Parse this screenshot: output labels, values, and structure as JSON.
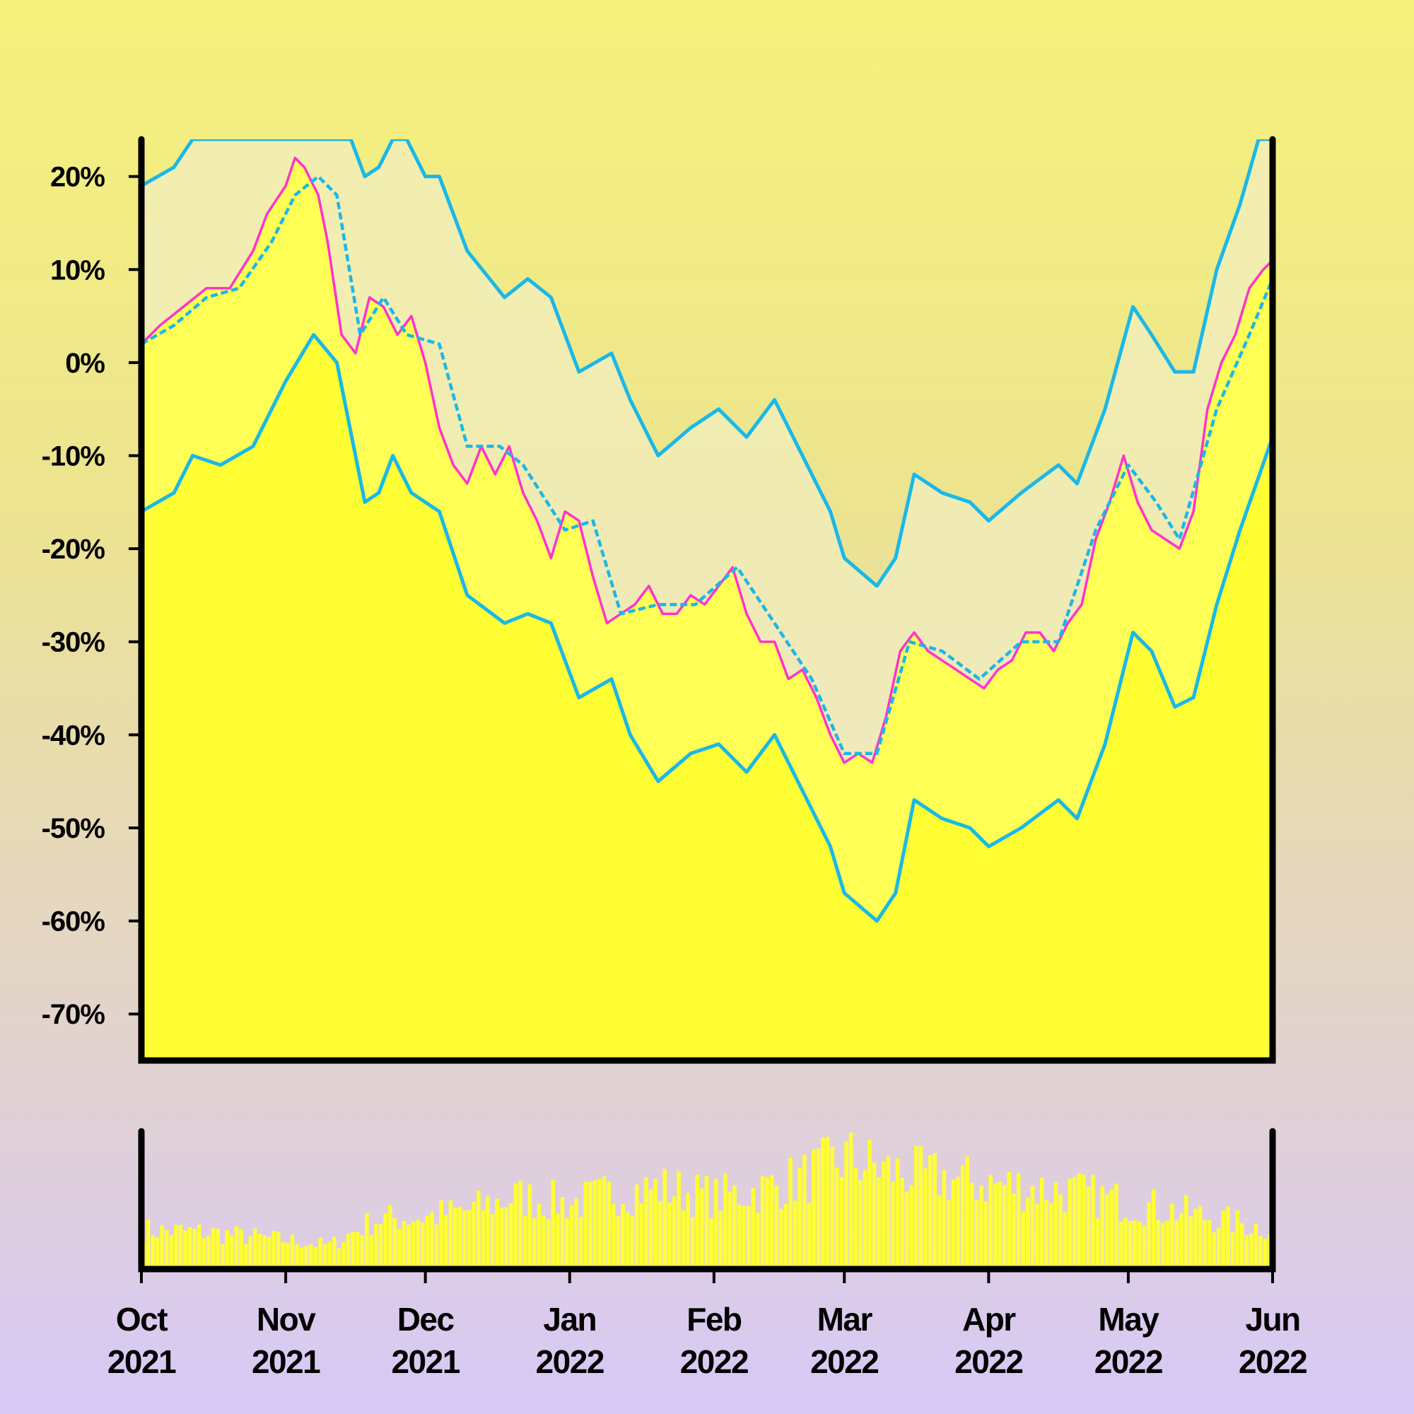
{
  "chart_data": {
    "type": "line",
    "title": "",
    "xlabel": "",
    "ylabel": "",
    "x_range": [
      "2021-10-01",
      "2022-06-01"
    ],
    "ylim": [
      -75,
      24
    ],
    "y_ticks": [
      {
        "value": 20,
        "label": "20%"
      },
      {
        "value": 10,
        "label": "10%"
      },
      {
        "value": 0,
        "label": "0%"
      },
      {
        "value": -10,
        "label": "-10%"
      },
      {
        "value": -20,
        "label": "-20%"
      },
      {
        "value": -30,
        "label": "-30%"
      },
      {
        "value": -40,
        "label": "-40%"
      },
      {
        "value": -50,
        "label": "-50%"
      },
      {
        "value": -60,
        "label": "-60%"
      },
      {
        "value": -70,
        "label": "-70%"
      }
    ],
    "x_ticks": [
      {
        "date": "2021-10-01",
        "month": "Oct",
        "year": "2021"
      },
      {
        "date": "2021-11-01",
        "month": "Nov",
        "year": "2021"
      },
      {
        "date": "2021-12-01",
        "month": "Dec",
        "year": "2021"
      },
      {
        "date": "2022-01-01",
        "month": "Jan",
        "year": "2022"
      },
      {
        "date": "2022-02-01",
        "month": "Feb",
        "year": "2022"
      },
      {
        "date": "2022-03-01",
        "month": "Mar",
        "year": "2022"
      },
      {
        "date": "2022-04-01",
        "month": "Apr",
        "year": "2022"
      },
      {
        "date": "2022-05-01",
        "month": "May",
        "year": "2022"
      },
      {
        "date": "2022-06-01",
        "month": "Jun",
        "year": "2022"
      }
    ],
    "colors": {
      "price_line": "#ff33cc",
      "bands": "#1ab8e8",
      "area_fill": "#ffff33",
      "band_fill": "#f2eec2",
      "volume": "#ffff33",
      "frame": "#000000"
    },
    "series": [
      {
        "role": "price",
        "style": "solid",
        "points": [
          [
            "2021-10-01",
            2
          ],
          [
            "2021-10-05",
            4
          ],
          [
            "2021-10-10",
            6
          ],
          [
            "2021-10-15",
            8
          ],
          [
            "2021-10-20",
            8
          ],
          [
            "2021-10-25",
            12
          ],
          [
            "2021-10-28",
            16
          ],
          [
            "2021-11-01",
            19
          ],
          [
            "2021-11-03",
            22
          ],
          [
            "2021-11-05",
            21
          ],
          [
            "2021-11-08",
            18
          ],
          [
            "2021-11-10",
            13
          ],
          [
            "2021-11-13",
            3
          ],
          [
            "2021-11-16",
            1
          ],
          [
            "2021-11-19",
            7
          ],
          [
            "2021-11-22",
            6
          ],
          [
            "2021-11-25",
            3
          ],
          [
            "2021-11-28",
            5
          ],
          [
            "2021-12-01",
            0
          ],
          [
            "2021-12-04",
            -7
          ],
          [
            "2021-12-07",
            -11
          ],
          [
            "2021-12-10",
            -13
          ],
          [
            "2021-12-13",
            -9
          ],
          [
            "2021-12-16",
            -12
          ],
          [
            "2021-12-19",
            -9
          ],
          [
            "2021-12-22",
            -14
          ],
          [
            "2021-12-25",
            -17
          ],
          [
            "2021-12-28",
            -21
          ],
          [
            "2021-12-31",
            -16
          ],
          [
            "2022-01-03",
            -17
          ],
          [
            "2022-01-06",
            -23
          ],
          [
            "2022-01-09",
            -28
          ],
          [
            "2022-01-12",
            -27
          ],
          [
            "2022-01-15",
            -26
          ],
          [
            "2022-01-18",
            -24
          ],
          [
            "2022-01-21",
            -27
          ],
          [
            "2022-01-24",
            -27
          ],
          [
            "2022-01-27",
            -25
          ],
          [
            "2022-01-30",
            -26
          ],
          [
            "2022-02-02",
            -24
          ],
          [
            "2022-02-05",
            -22
          ],
          [
            "2022-02-08",
            -27
          ],
          [
            "2022-02-11",
            -30
          ],
          [
            "2022-02-14",
            -30
          ],
          [
            "2022-02-17",
            -34
          ],
          [
            "2022-02-20",
            -33
          ],
          [
            "2022-02-23",
            -36
          ],
          [
            "2022-02-26",
            -40
          ],
          [
            "2022-03-01",
            -43
          ],
          [
            "2022-03-04",
            -42
          ],
          [
            "2022-03-07",
            -43
          ],
          [
            "2022-03-10",
            -38
          ],
          [
            "2022-03-13",
            -31
          ],
          [
            "2022-03-16",
            -29
          ],
          [
            "2022-03-19",
            -31
          ],
          [
            "2022-03-22",
            -32
          ],
          [
            "2022-03-25",
            -33
          ],
          [
            "2022-03-28",
            -34
          ],
          [
            "2022-03-31",
            -35
          ],
          [
            "2022-04-03",
            -33
          ],
          [
            "2022-04-06",
            -32
          ],
          [
            "2022-04-09",
            -29
          ],
          [
            "2022-04-12",
            -29
          ],
          [
            "2022-04-15",
            -31
          ],
          [
            "2022-04-18",
            -28
          ],
          [
            "2022-04-21",
            -26
          ],
          [
            "2022-04-24",
            -19
          ],
          [
            "2022-04-27",
            -15
          ],
          [
            "2022-04-30",
            -10
          ],
          [
            "2022-05-03",
            -15
          ],
          [
            "2022-05-06",
            -18
          ],
          [
            "2022-05-09",
            -19
          ],
          [
            "2022-05-12",
            -20
          ],
          [
            "2022-05-15",
            -16
          ],
          [
            "2022-05-18",
            -5
          ],
          [
            "2022-05-21",
            0
          ],
          [
            "2022-05-24",
            3
          ],
          [
            "2022-05-27",
            8
          ],
          [
            "2022-05-30",
            10
          ],
          [
            "2022-06-01",
            11
          ]
        ]
      },
      {
        "role": "moving-average",
        "style": "dashed",
        "points": [
          [
            "2021-10-01",
            2
          ],
          [
            "2021-10-08",
            4
          ],
          [
            "2021-10-15",
            7
          ],
          [
            "2021-10-22",
            8
          ],
          [
            "2021-10-29",
            13
          ],
          [
            "2021-11-03",
            18
          ],
          [
            "2021-11-08",
            20
          ],
          [
            "2021-11-12",
            18
          ],
          [
            "2021-11-17",
            3
          ],
          [
            "2021-11-22",
            7
          ],
          [
            "2021-11-27",
            3
          ],
          [
            "2021-12-04",
            2
          ],
          [
            "2021-12-10",
            -9
          ],
          [
            "2021-12-17",
            -9
          ],
          [
            "2021-12-22",
            -11
          ],
          [
            "2021-12-31",
            -18
          ],
          [
            "2022-01-06",
            -17
          ],
          [
            "2022-01-12",
            -27
          ],
          [
            "2022-01-20",
            -26
          ],
          [
            "2022-01-28",
            -26
          ],
          [
            "2022-02-06",
            -22
          ],
          [
            "2022-02-14",
            -28
          ],
          [
            "2022-02-22",
            -34
          ],
          [
            "2022-03-01",
            -42
          ],
          [
            "2022-03-08",
            -42
          ],
          [
            "2022-03-15",
            -30
          ],
          [
            "2022-03-22",
            -31
          ],
          [
            "2022-03-30",
            -34
          ],
          [
            "2022-04-08",
            -30
          ],
          [
            "2022-04-16",
            -30
          ],
          [
            "2022-04-24",
            -18
          ],
          [
            "2022-05-01",
            -11
          ],
          [
            "2022-05-07",
            -15
          ],
          [
            "2022-05-12",
            -19
          ],
          [
            "2022-05-20",
            -5
          ],
          [
            "2022-05-27",
            3
          ],
          [
            "2022-06-01",
            9
          ]
        ]
      },
      {
        "role": "upper-band",
        "style": "solid",
        "points": [
          [
            "2021-10-01",
            19
          ],
          [
            "2021-10-08",
            21
          ],
          [
            "2021-10-12",
            24
          ],
          [
            "2021-11-15",
            24
          ],
          [
            "2021-11-18",
            20
          ],
          [
            "2021-11-21",
            21
          ],
          [
            "2021-11-24",
            24
          ],
          [
            "2021-11-27",
            24
          ],
          [
            "2021-12-01",
            20
          ],
          [
            "2021-12-04",
            20
          ],
          [
            "2021-12-10",
            12
          ],
          [
            "2021-12-18",
            7
          ],
          [
            "2021-12-23",
            9
          ],
          [
            "2021-12-28",
            7
          ],
          [
            "2022-01-03",
            -1
          ],
          [
            "2022-01-10",
            1
          ],
          [
            "2022-01-14",
            -4
          ],
          [
            "2022-01-20",
            -10
          ],
          [
            "2022-01-27",
            -7
          ],
          [
            "2022-02-02",
            -5
          ],
          [
            "2022-02-08",
            -8
          ],
          [
            "2022-02-14",
            -4
          ],
          [
            "2022-02-20",
            -10
          ],
          [
            "2022-02-26",
            -16
          ],
          [
            "2022-03-01",
            -21
          ],
          [
            "2022-03-08",
            -24
          ],
          [
            "2022-03-12",
            -21
          ],
          [
            "2022-03-16",
            -12
          ],
          [
            "2022-03-22",
            -14
          ],
          [
            "2022-03-28",
            -15
          ],
          [
            "2022-04-01",
            -17
          ],
          [
            "2022-04-08",
            -14
          ],
          [
            "2022-04-16",
            -11
          ],
          [
            "2022-04-20",
            -13
          ],
          [
            "2022-04-26",
            -5
          ],
          [
            "2022-05-02",
            6
          ],
          [
            "2022-05-06",
            3
          ],
          [
            "2022-05-11",
            -1
          ],
          [
            "2022-05-15",
            -1
          ],
          [
            "2022-05-20",
            10
          ],
          [
            "2022-05-25",
            17
          ],
          [
            "2022-05-29",
            24
          ],
          [
            "2022-06-01",
            24
          ]
        ]
      },
      {
        "role": "lower-band",
        "style": "solid",
        "points": [
          [
            "2021-10-01",
            -16
          ],
          [
            "2021-10-08",
            -14
          ],
          [
            "2021-10-12",
            -10
          ],
          [
            "2021-10-18",
            -11
          ],
          [
            "2021-10-25",
            -9
          ],
          [
            "2021-11-01",
            -2
          ],
          [
            "2021-11-07",
            3
          ],
          [
            "2021-11-12",
            0
          ],
          [
            "2021-11-18",
            -15
          ],
          [
            "2021-11-21",
            -14
          ],
          [
            "2021-11-24",
            -10
          ],
          [
            "2021-11-28",
            -14
          ],
          [
            "2021-12-01",
            -15
          ],
          [
            "2021-12-04",
            -16
          ],
          [
            "2021-12-10",
            -25
          ],
          [
            "2021-12-18",
            -28
          ],
          [
            "2021-12-23",
            -27
          ],
          [
            "2021-12-28",
            -28
          ],
          [
            "2022-01-03",
            -36
          ],
          [
            "2022-01-10",
            -34
          ],
          [
            "2022-01-14",
            -40
          ],
          [
            "2022-01-20",
            -45
          ],
          [
            "2022-01-27",
            -42
          ],
          [
            "2022-02-02",
            -41
          ],
          [
            "2022-02-08",
            -44
          ],
          [
            "2022-02-14",
            -40
          ],
          [
            "2022-02-20",
            -46
          ],
          [
            "2022-02-26",
            -52
          ],
          [
            "2022-03-01",
            -57
          ],
          [
            "2022-03-08",
            -60
          ],
          [
            "2022-03-12",
            -57
          ],
          [
            "2022-03-16",
            -47
          ],
          [
            "2022-03-22",
            -49
          ],
          [
            "2022-03-28",
            -50
          ],
          [
            "2022-04-01",
            -52
          ],
          [
            "2022-04-08",
            -50
          ],
          [
            "2022-04-16",
            -47
          ],
          [
            "2022-04-20",
            -49
          ],
          [
            "2022-04-26",
            -41
          ],
          [
            "2022-05-02",
            -29
          ],
          [
            "2022-05-06",
            -31
          ],
          [
            "2022-05-11",
            -37
          ],
          [
            "2022-05-15",
            -36
          ],
          [
            "2022-05-20",
            -26
          ],
          [
            "2022-05-25",
            -18
          ],
          [
            "2022-06-01",
            -8
          ]
        ]
      }
    ],
    "volume_profile": [
      [
        "2021-10-01",
        0.3
      ],
      [
        "2021-10-15",
        0.28
      ],
      [
        "2021-11-01",
        0.22
      ],
      [
        "2021-11-10",
        0.18
      ],
      [
        "2021-11-20",
        0.38
      ],
      [
        "2021-12-01",
        0.4
      ],
      [
        "2021-12-10",
        0.45
      ],
      [
        "2021-12-20",
        0.55
      ],
      [
        "2022-01-01",
        0.5
      ],
      [
        "2022-01-10",
        0.58
      ],
      [
        "2022-01-20",
        0.62
      ],
      [
        "2022-02-01",
        0.55
      ],
      [
        "2022-02-10",
        0.6
      ],
      [
        "2022-02-20",
        0.7
      ],
      [
        "2022-03-01",
        0.85
      ],
      [
        "2022-03-10",
        0.75
      ],
      [
        "2022-03-20",
        0.7
      ],
      [
        "2022-04-01",
        0.65
      ],
      [
        "2022-04-10",
        0.62
      ],
      [
        "2022-04-20",
        0.58
      ],
      [
        "2022-05-01",
        0.5
      ],
      [
        "2022-05-10",
        0.45
      ],
      [
        "2022-05-20",
        0.38
      ],
      [
        "2022-06-01",
        0.3
      ]
    ]
  }
}
